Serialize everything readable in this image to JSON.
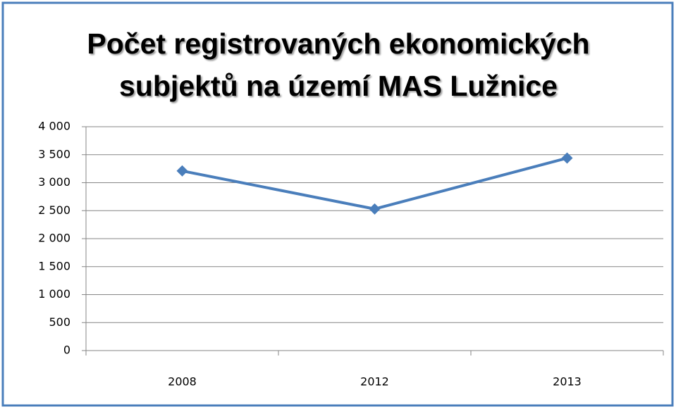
{
  "chart_data": {
    "type": "line",
    "title": [
      "Počet registrovaných ekonomických",
      "subjektů na území MAS Lužnice"
    ],
    "categories": [
      "2008",
      "2012",
      "2013"
    ],
    "series": [
      {
        "color": "#4a7ebb",
        "values": [
          3210,
          2530,
          3440
        ]
      }
    ],
    "ylim": [
      0,
      4000
    ],
    "yticks": [
      0,
      500,
      {
        "value": 1000,
        "label": "1 000"
      },
      {
        "value": 1500,
        "label": "1 500"
      },
      {
        "value": 2000,
        "label": "2 000"
      },
      {
        "value": 2500,
        "label": "2 500"
      },
      {
        "value": 3000,
        "label": "3 000"
      },
      {
        "value": 3500,
        "label": "3 500"
      },
      {
        "value": 4000,
        "label": "4 000"
      }
    ],
    "grid": true
  }
}
